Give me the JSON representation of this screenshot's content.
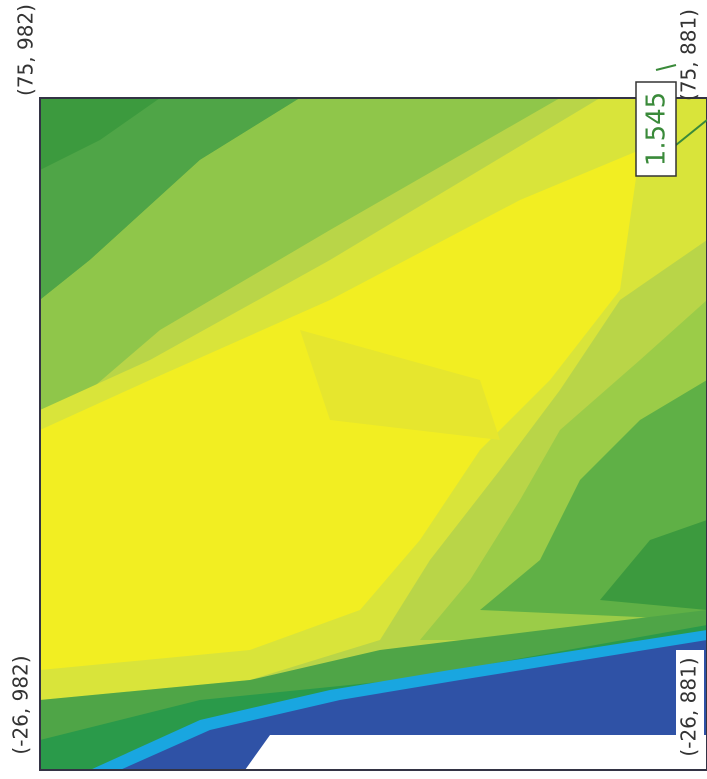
{
  "corners": {
    "top_left": "(75, 982)",
    "top_right": "(75, 881)",
    "bottom_left": "(-26, 982)",
    "bottom_right": "(-26, 881)"
  },
  "marker": {
    "label": "1.545"
  }
}
